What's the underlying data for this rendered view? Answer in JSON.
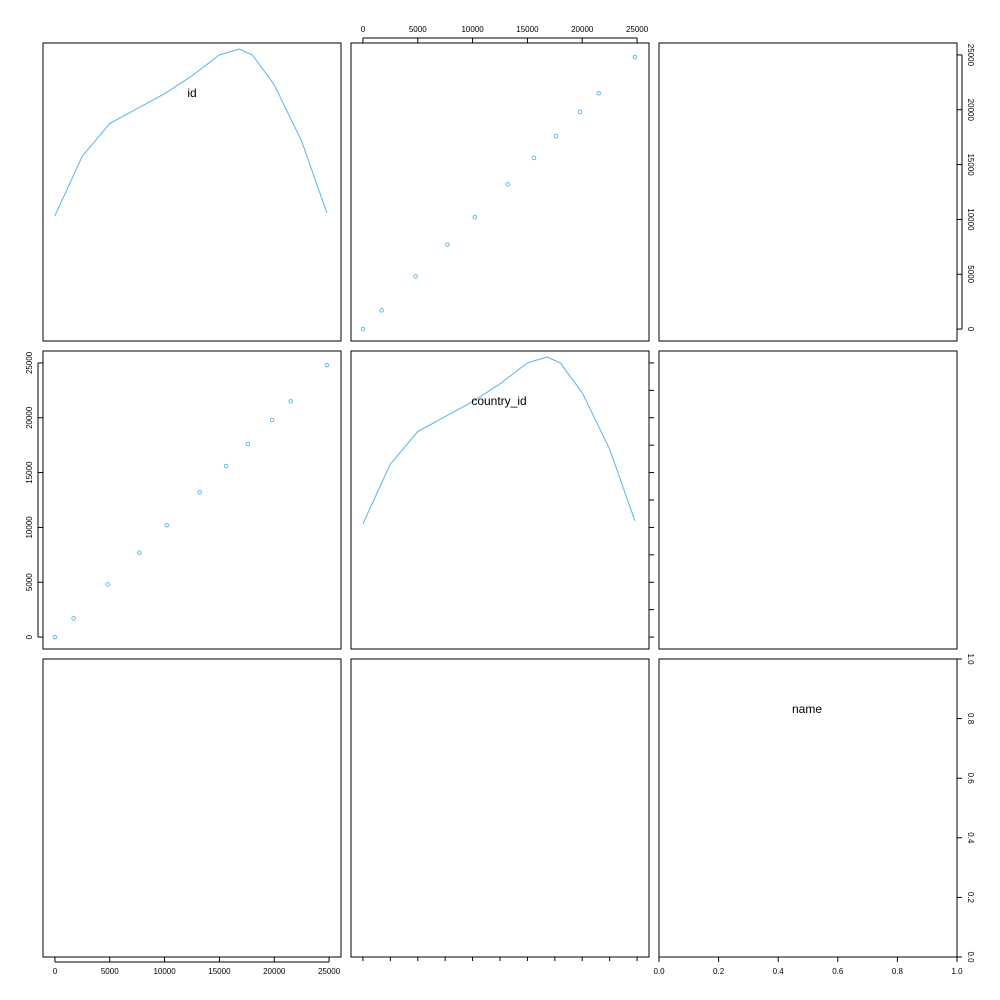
{
  "chart_data": {
    "type": "scatter",
    "layout": "scatterplot-matrix",
    "variables": [
      "id",
      "country_id",
      "name"
    ],
    "point_color": "#5AB4E8",
    "density_color": "#5AB4E8",
    "ranges": {
      "id": [
        0,
        25000
      ],
      "country_id": [
        0,
        25000
      ],
      "name": [
        0,
        1
      ]
    },
    "ticks": {
      "data_axis": [
        0,
        5000,
        10000,
        15000,
        20000,
        25000
      ],
      "unit_axis": [
        0.0,
        0.2,
        0.4,
        0.6,
        0.8,
        1.0
      ]
    },
    "tick_labels": {
      "data_axis": [
        "0",
        "5000",
        "10000",
        "15000",
        "20000",
        "25000"
      ],
      "unit_axis": [
        "0.0",
        "0.2",
        "0.4",
        "0.6",
        "0.8",
        "1.0"
      ]
    },
    "points": {
      "id": [
        0,
        1700,
        4800,
        7700,
        10200,
        13200,
        15600,
        17600,
        19800,
        21500,
        24800
      ],
      "country_id": [
        0,
        1700,
        4800,
        7700,
        10200,
        13200,
        15600,
        17600,
        19800,
        21500,
        24800
      ]
    },
    "density": {
      "x": [
        0,
        2500,
        5000,
        7500,
        10000,
        12500,
        15000,
        16800,
        18000,
        20000,
        22500,
        24800
      ],
      "y": [
        0.42,
        0.62,
        0.73,
        0.78,
        0.83,
        0.89,
        0.96,
        0.98,
        0.96,
        0.86,
        0.67,
        0.43
      ]
    },
    "diagonal_labels": [
      "id",
      "country_id",
      "name"
    ],
    "grid": false
  }
}
